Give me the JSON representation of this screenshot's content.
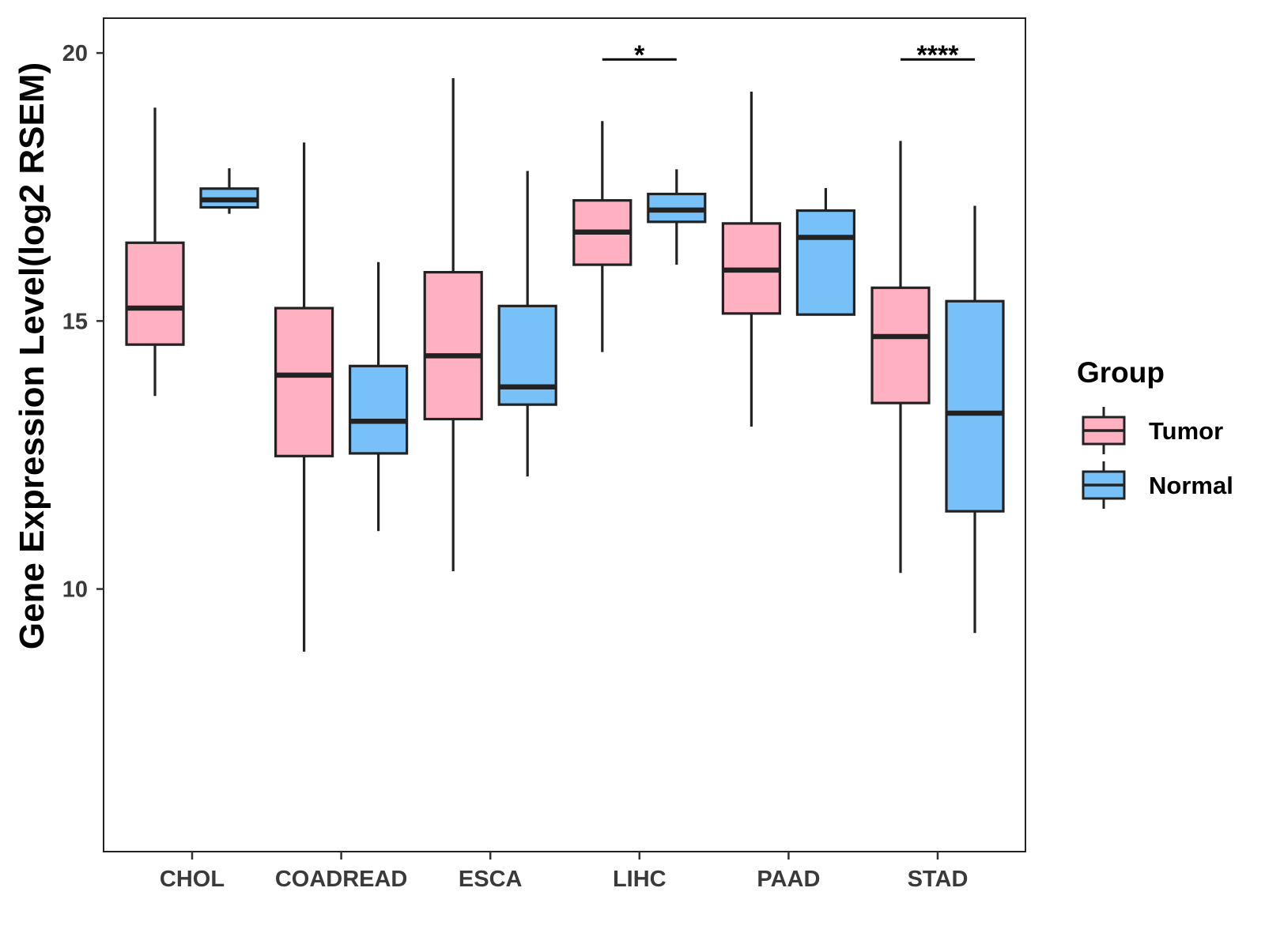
{
  "chart_data": {
    "type": "boxplot",
    "title": "",
    "xlabel": "",
    "ylabel": "Gene Expression Level(log2 RSEM)",
    "ylim": [
      5.1,
      20.65
    ],
    "yticks": [
      {
        "value": 10,
        "label": "10"
      },
      {
        "value": 15,
        "label": "15"
      },
      {
        "value": 20,
        "label": "20"
      }
    ],
    "categories": [
      "CHOL",
      "COADREAD",
      "ESCA",
      "LIHC",
      "PAAD",
      "STAD"
    ],
    "legend": {
      "title": "Group",
      "position": "right",
      "entries": [
        {
          "name": "Tumor",
          "color": "#FFB0C1"
        },
        {
          "name": "Normal",
          "color": "#77C1F8"
        }
      ]
    },
    "series": [
      {
        "name": "Tumor",
        "color": "#FFB0C1",
        "boxes": [
          {
            "category": "CHOL",
            "min": 13.6,
            "q1": 14.56,
            "median": 15.24,
            "q3": 16.46,
            "max": 18.98
          },
          {
            "category": "COADREAD",
            "min": 8.83,
            "q1": 12.48,
            "median": 13.99,
            "q3": 15.24,
            "max": 18.33
          },
          {
            "category": "ESCA",
            "min": 10.33,
            "q1": 13.17,
            "median": 14.35,
            "q3": 15.91,
            "max": 19.53
          },
          {
            "category": "LIHC",
            "min": 14.42,
            "q1": 16.05,
            "median": 16.66,
            "q3": 17.25,
            "max": 18.73
          },
          {
            "category": "PAAD",
            "min": 13.03,
            "q1": 15.14,
            "median": 15.95,
            "q3": 16.82,
            "max": 19.28
          },
          {
            "category": "STAD",
            "min": 10.3,
            "q1": 13.47,
            "median": 14.71,
            "q3": 15.62,
            "max": 18.36
          }
        ]
      },
      {
        "name": "Normal",
        "color": "#77C1F8",
        "boxes": [
          {
            "category": "CHOL",
            "min": 17.0,
            "q1": 17.12,
            "median": 17.26,
            "q3": 17.47,
            "max": 17.85
          },
          {
            "category": "COADREAD",
            "min": 11.08,
            "q1": 12.53,
            "median": 13.13,
            "q3": 14.16,
            "max": 16.1
          },
          {
            "category": "ESCA",
            "min": 12.1,
            "q1": 13.44,
            "median": 13.77,
            "q3": 15.28,
            "max": 17.8
          },
          {
            "category": "LIHC",
            "min": 16.05,
            "q1": 16.85,
            "median": 17.07,
            "q3": 17.37,
            "max": 17.83
          },
          {
            "category": "PAAD",
            "min": 15.12,
            "q1": 15.12,
            "median": 16.56,
            "q3": 17.06,
            "max": 17.48
          },
          {
            "category": "STAD",
            "min": 9.18,
            "q1": 11.45,
            "median": 13.28,
            "q3": 15.37,
            "max": 17.15
          }
        ]
      }
    ],
    "significance": [
      {
        "category": "LIHC",
        "label": "*",
        "y": 19.88
      },
      {
        "category": "STAD",
        "label": "****",
        "y": 19.88
      }
    ]
  }
}
